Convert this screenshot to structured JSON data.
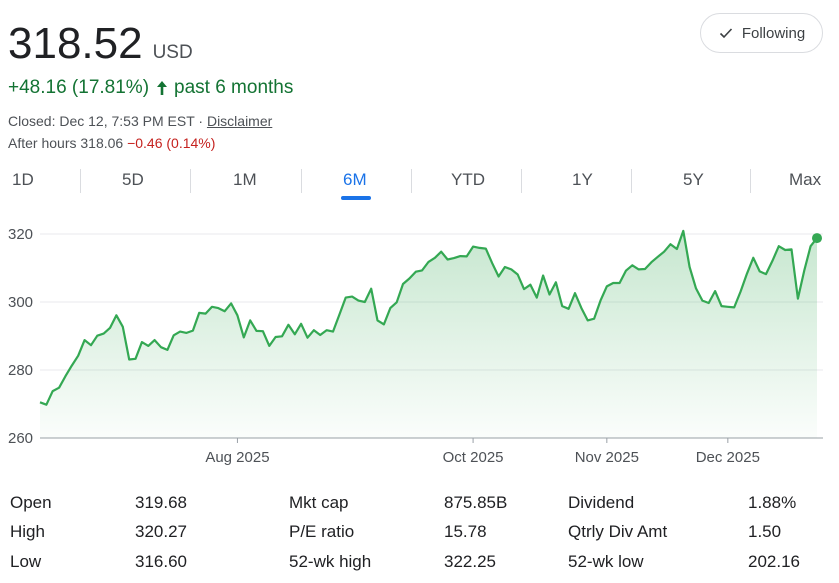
{
  "quote": {
    "price": "318.52",
    "currency": "USD",
    "change": "+48.16 (17.81%)",
    "period": "past 6 months",
    "closed_text": "Closed: Dec 12, 7:53 PM EST ·",
    "disclaimer": "Disclaimer",
    "after_hours_label": "After hours 318.06",
    "after_hours_change": "−0.46 (0.14%)",
    "positive_color": "#137333",
    "negative_color": "#c5221f"
  },
  "follow_button": {
    "label": "Following",
    "icon": "check-icon"
  },
  "range_tabs": [
    "1D",
    "5D",
    "1M",
    "6M",
    "YTD",
    "1Y",
    "5Y",
    "Max"
  ],
  "active_range": "6M",
  "chart_data": {
    "type": "area",
    "x_ticks": [
      {
        "label": "Aug 2025",
        "index": 31
      },
      {
        "label": "Oct 2025",
        "index": 68
      },
      {
        "label": "Nov 2025",
        "index": 89
      },
      {
        "label": "Dec 2025",
        "index": 108
      }
    ],
    "y_ticks": [
      260,
      280,
      300,
      320
    ],
    "ylim": [
      260,
      326
    ],
    "line_color": "#34a853",
    "series": [
      {
        "values": [
          270.5,
          269.8,
          273.8,
          274.8,
          278.2,
          281.3,
          284.2,
          288.8,
          287.3,
          290.1,
          290.7,
          292.4,
          296.1,
          292.7,
          283.1,
          283.3,
          288.2,
          287.1,
          288.8,
          286.7,
          285.9,
          290.2,
          291.3,
          290.9,
          291.6,
          296.8,
          296.6,
          298.6,
          298.2,
          297.3,
          299.6,
          296.1,
          289.6,
          294.6,
          291.5,
          291.4,
          287.1,
          289.7,
          289.9,
          293.3,
          290.5,
          293.6,
          289.5,
          291.7,
          290.3,
          291.7,
          291.3,
          296.2,
          301.3,
          301.6,
          300.4,
          300.0,
          303.9,
          294.6,
          293.4,
          298.2,
          299.9,
          305.3,
          306.9,
          308.9,
          309.3,
          311.8,
          313.0,
          314.8,
          312.5,
          312.9,
          313.5,
          313.4,
          316.3,
          315.9,
          315.7,
          311.4,
          307.5,
          310.3,
          309.6,
          308.1,
          303.8,
          305.1,
          301.3,
          307.8,
          302.2,
          305.8,
          298.8,
          298.0,
          302.6,
          298.2,
          294.6,
          295.1,
          300.4,
          304.6,
          305.6,
          305.6,
          309.2,
          310.8,
          309.6,
          309.7,
          311.7,
          313.3,
          314.8,
          317.0,
          315.6,
          320.9,
          310.3,
          304.0,
          300.4,
          299.7,
          303.2,
          298.8,
          298.6,
          298.4,
          303.1,
          308.3,
          313.0,
          309.0,
          308.2,
          312.1,
          316.4,
          315.3,
          315.5,
          301.0,
          309.3,
          316.4,
          318.8
        ]
      }
    ]
  },
  "stats": [
    {
      "label": "Open",
      "value": "319.68"
    },
    {
      "label": "High",
      "value": "320.27"
    },
    {
      "label": "Low",
      "value": "316.60"
    },
    {
      "label": "Mkt cap",
      "value": "875.85B"
    },
    {
      "label": "P/E ratio",
      "value": "15.78"
    },
    {
      "label": "52-wk high",
      "value": "322.25"
    },
    {
      "label": "Dividend",
      "value": "1.88%"
    },
    {
      "label": "Qtrly Div Amt",
      "value": "1.50"
    },
    {
      "label": "52-wk low",
      "value": "202.16"
    }
  ]
}
